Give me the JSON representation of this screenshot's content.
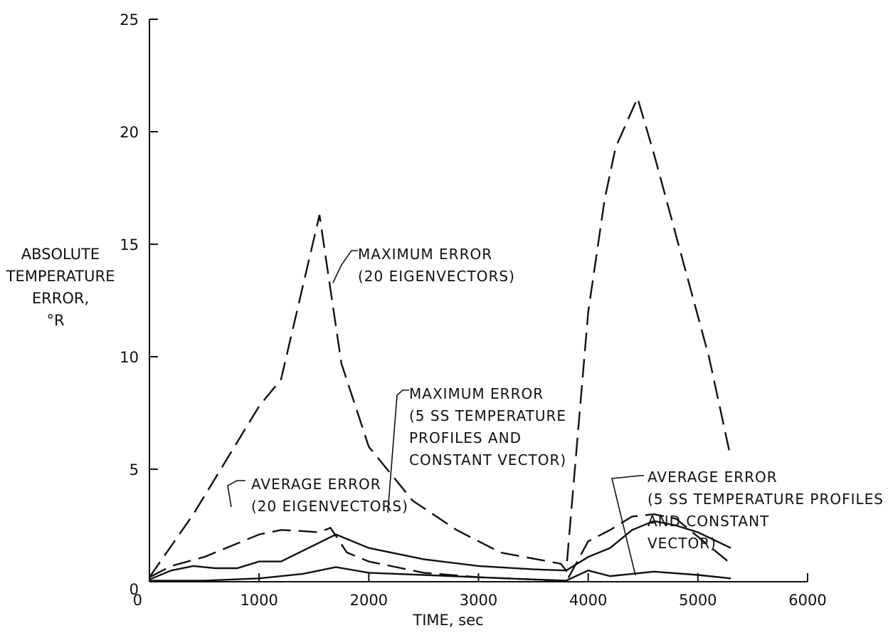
{
  "chart_data": {
    "type": "line",
    "title": "",
    "xlabel": "TIME, sec",
    "ylabel": [
      "ABSOLUTE",
      "TEMPERATURE",
      "ERROR,",
      "°R"
    ],
    "xlim": [
      0,
      6000
    ],
    "ylim": [
      0,
      25
    ],
    "x_ticks": [
      "0",
      "1000",
      "2000",
      "3000",
      "4000",
      "5000",
      "6000"
    ],
    "y_ticks": [
      "0",
      "5",
      "10",
      "15",
      "20",
      "25"
    ],
    "grid": false,
    "legend": "none",
    "series": [
      {
        "name": "MAXIMUM ERROR (20 EIGENVECTORS)",
        "style": "dashed",
        "x": [
          0,
          400,
          800,
          1000,
          1200,
          1550,
          1750,
          2000,
          2400,
          2800,
          3200,
          3750,
          3800,
          4000,
          4150,
          4250,
          4450,
          4600,
          4850,
          5100,
          5300
        ],
        "y": [
          0.2,
          3.0,
          6.2,
          7.8,
          9.0,
          16.3,
          9.7,
          6.0,
          3.6,
          2.3,
          1.3,
          0.8,
          0.5,
          12.0,
          17.0,
          19.3,
          21.5,
          19.0,
          14.5,
          10.0,
          5.5
        ]
      },
      {
        "name": "MAXIMUM ERROR (5 SS TEMPERATURE PROFILES AND CONSTANT VECTOR)",
        "style": "solid",
        "x": [
          0,
          200,
          400,
          600,
          800,
          1000,
          1200,
          1700,
          2000,
          2500,
          3000,
          3500,
          3800,
          4000,
          4200,
          4400,
          4600,
          4800,
          5000,
          5300
        ],
        "y": [
          0.1,
          0.5,
          0.7,
          0.6,
          0.6,
          0.9,
          0.9,
          2.1,
          1.5,
          1.0,
          0.7,
          0.55,
          0.5,
          1.1,
          1.5,
          2.3,
          2.7,
          2.5,
          2.2,
          1.5
        ]
      },
      {
        "name": "AVERAGE ERROR (20 EIGENVECTORS)",
        "style": "dashed",
        "x": [
          0,
          200,
          500,
          800,
          1000,
          1200,
          1400,
          1550,
          1650,
          1800,
          2000,
          2500,
          3000,
          3500,
          3800,
          4000,
          4200,
          4400,
          4600,
          4800,
          5300
        ],
        "y": [
          0.2,
          0.7,
          1.1,
          1.7,
          2.1,
          2.3,
          2.25,
          2.2,
          2.4,
          1.3,
          0.9,
          0.4,
          0.2,
          0.1,
          0.0,
          1.8,
          2.3,
          2.9,
          3.0,
          2.8,
          0.8
        ]
      },
      {
        "name": "AVERAGE ERROR (5 SS TEMPERATURE PROFILES AND CONSTANT VECTOR)",
        "style": "solid",
        "x": [
          0,
          500,
          1000,
          1400,
          1700,
          2000,
          2500,
          3000,
          3500,
          3800,
          4000,
          4200,
          4600,
          5000,
          5300
        ],
        "y": [
          0.05,
          0.05,
          0.15,
          0.35,
          0.65,
          0.4,
          0.3,
          0.2,
          0.1,
          0.05,
          0.5,
          0.25,
          0.45,
          0.3,
          0.15
        ]
      }
    ],
    "annotations": [
      {
        "lines": [
          "MAXIMUM ERROR",
          "(20 EIGENVECTORS)"
        ]
      },
      {
        "lines": [
          "MAXIMUM ERROR",
          "(5 SS TEMPERATURE",
          "PROFILES AND",
          "CONSTANT VECTOR)"
        ]
      },
      {
        "lines": [
          "AVERAGE ERROR",
          "(20 EIGENVECTORS)"
        ]
      },
      {
        "lines": [
          "AVERAGE ERROR",
          "(5 SS TEMPERATURE PROFILES",
          "AND CONSTANT",
          "VECTOR)"
        ]
      }
    ]
  }
}
